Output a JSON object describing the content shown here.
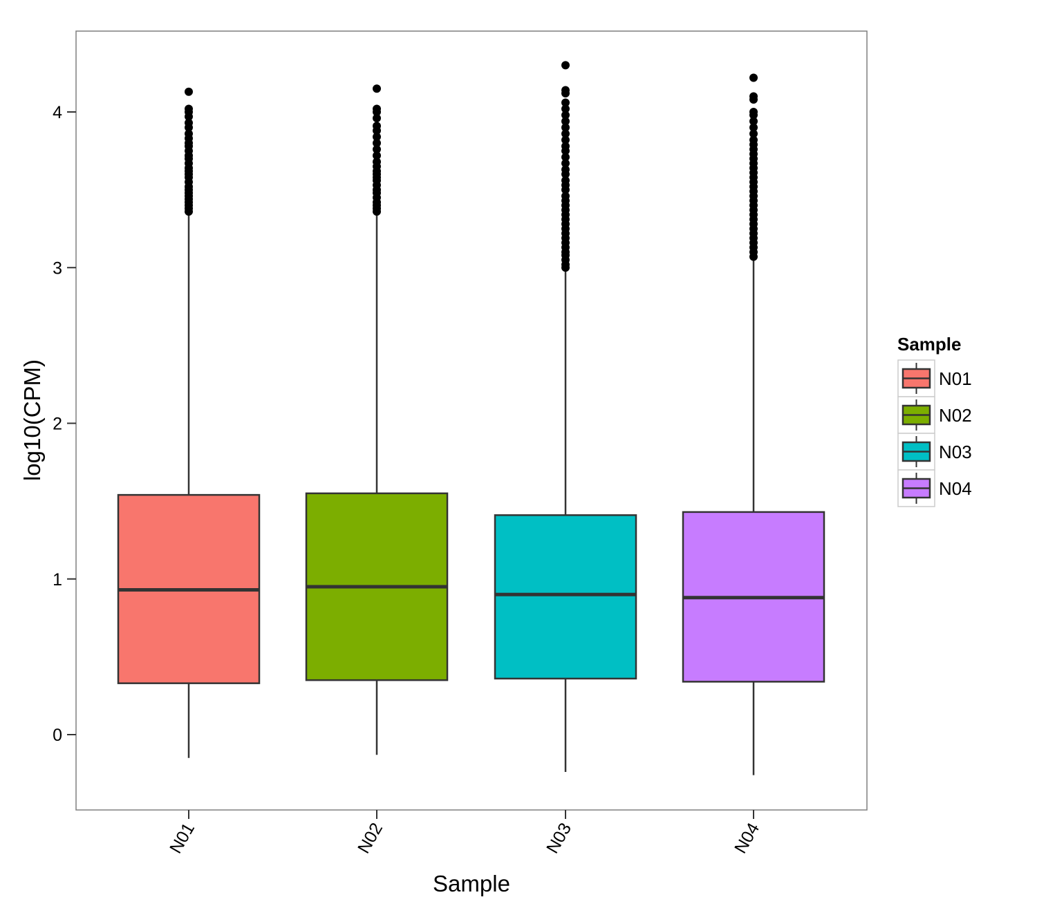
{
  "chart_data": {
    "type": "box",
    "xlabel": "Sample",
    "ylabel": "log10(CPM)",
    "categories": [
      "N01",
      "N02",
      "N03",
      "N04"
    ],
    "ylim": [
      -0.45,
      4.55
    ],
    "yticks": [
      0,
      1,
      2,
      3,
      4
    ],
    "grid": false,
    "legend": {
      "title": "Sample",
      "position": "right",
      "entries": [
        "N01",
        "N02",
        "N03",
        "N04"
      ]
    },
    "series": [
      {
        "name": "N01",
        "color": "#F8766D",
        "whisker_low": -0.15,
        "q1": 0.33,
        "median": 0.93,
        "q3": 1.54,
        "whisker_high": 3.34,
        "outliers": [
          3.36,
          3.38,
          3.4,
          3.42,
          3.44,
          3.46,
          3.48,
          3.5,
          3.52,
          3.55,
          3.58,
          3.6,
          3.62,
          3.64,
          3.67,
          3.7,
          3.72,
          3.75,
          3.78,
          3.8,
          3.83,
          3.86,
          3.9,
          3.93,
          3.97,
          4.0,
          4.02,
          4.13
        ]
      },
      {
        "name": "N02",
        "color": "#7CAE00",
        "whisker_low": -0.13,
        "q1": 0.35,
        "median": 0.95,
        "q3": 1.55,
        "whisker_high": 3.34,
        "outliers": [
          3.36,
          3.38,
          3.4,
          3.42,
          3.45,
          3.48,
          3.5,
          3.53,
          3.56,
          3.58,
          3.6,
          3.62,
          3.65,
          3.68,
          3.72,
          3.76,
          3.8,
          3.84,
          3.88,
          3.91,
          3.96,
          4.0,
          4.02,
          4.15
        ]
      },
      {
        "name": "N03",
        "color": "#00BFC4",
        "whisker_low": -0.24,
        "q1": 0.36,
        "median": 0.9,
        "q3": 1.41,
        "whisker_high": 2.98,
        "outliers": [
          3.0,
          3.02,
          3.05,
          3.08,
          3.1,
          3.13,
          3.16,
          3.19,
          3.22,
          3.25,
          3.28,
          3.31,
          3.34,
          3.37,
          3.4,
          3.43,
          3.46,
          3.5,
          3.53,
          3.56,
          3.6,
          3.63,
          3.67,
          3.71,
          3.75,
          3.78,
          3.82,
          3.86,
          3.9,
          3.94,
          3.98,
          4.02,
          4.06,
          4.12,
          4.14,
          4.3
        ]
      },
      {
        "name": "N04",
        "color": "#C77CFF",
        "whisker_low": -0.26,
        "q1": 0.34,
        "median": 0.88,
        "q3": 1.43,
        "whisker_high": 3.05,
        "outliers": [
          3.07,
          3.1,
          3.13,
          3.16,
          3.19,
          3.22,
          3.25,
          3.28,
          3.31,
          3.34,
          3.37,
          3.4,
          3.43,
          3.46,
          3.49,
          3.52,
          3.55,
          3.58,
          3.61,
          3.64,
          3.67,
          3.7,
          3.73,
          3.76,
          3.79,
          3.82,
          3.86,
          3.9,
          3.94,
          3.98,
          4.0,
          4.08,
          4.1,
          4.22
        ]
      }
    ]
  }
}
